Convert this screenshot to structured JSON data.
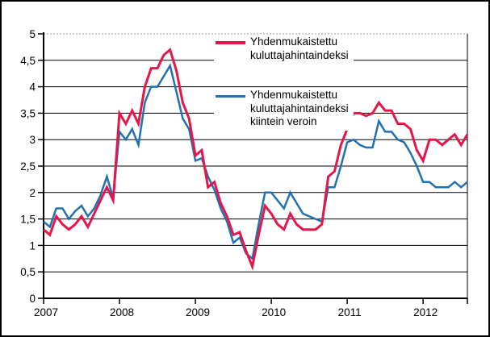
{
  "figure": {
    "background": "#ffffff",
    "frame_color": "#000000"
  },
  "legend": [
    {
      "lines": [
        "Yhdenmukaistettu",
        "kuluttajahintaindeksi"
      ],
      "color": "#e5164a"
    },
    {
      "lines": [
        "Yhdenmukaistettu",
        "kuluttajahintaindeksi",
        "kiintein veroin"
      ],
      "color": "#2272b2"
    }
  ],
  "chart_data": {
    "type": "line",
    "title": "",
    "xlabel": "",
    "ylabel": "",
    "x_frequency": "monthly",
    "x_start": "2007-01",
    "x_end": "2012-08",
    "x_tick_labels": [
      "2007",
      "2008",
      "2009",
      "2010",
      "2011",
      "2012"
    ],
    "x_tick_month_indices": [
      0,
      12,
      24,
      36,
      48,
      60
    ],
    "ylim": [
      0,
      5
    ],
    "y_ticks": [
      0,
      0.5,
      1,
      1.5,
      2,
      2.5,
      3,
      3.5,
      4,
      4.5,
      5
    ],
    "y_tick_labels": [
      "0",
      "0,5",
      "1",
      "1,5",
      "2",
      "2,5",
      "3",
      "3,5",
      "4",
      "4,5",
      "5"
    ],
    "grid": "horizontal",
    "top_gridline_style": "dotted-grey",
    "legend_position": "inside-top-center",
    "series": [
      {
        "name": "Yhdenmukaistettu kuluttajahintaindeksi",
        "color": "#e5164a",
        "line_width": 3,
        "values": [
          1.3,
          1.2,
          1.55,
          1.4,
          1.3,
          1.4,
          1.55,
          1.35,
          1.6,
          1.85,
          2.1,
          1.85,
          3.5,
          3.3,
          3.55,
          3.3,
          4.0,
          4.35,
          4.35,
          4.6,
          4.7,
          4.3,
          3.7,
          3.4,
          2.7,
          2.8,
          2.1,
          2.2,
          1.8,
          1.55,
          1.2,
          1.25,
          0.9,
          0.6,
          1.2,
          1.75,
          1.6,
          1.4,
          1.3,
          1.6,
          1.4,
          1.3,
          1.3,
          1.3,
          1.4,
          2.3,
          2.4,
          2.9,
          3.2,
          3.5,
          3.5,
          3.45,
          3.5,
          3.7,
          3.55,
          3.55,
          3.3,
          3.3,
          3.2,
          2.8,
          2.6,
          3.0,
          3.0,
          2.9,
          3.0,
          3.1,
          2.9,
          3.1
        ]
      },
      {
        "name": "Yhdenmukaistettu kuluttajahintaindeksi kiintein veroin",
        "color": "#2272b2",
        "line_width": 2.5,
        "values": [
          1.45,
          1.35,
          1.7,
          1.7,
          1.5,
          1.65,
          1.75,
          1.55,
          1.7,
          1.95,
          2.3,
          1.9,
          3.15,
          3.0,
          3.2,
          2.9,
          3.7,
          4.0,
          4.0,
          4.2,
          4.4,
          3.9,
          3.4,
          3.2,
          2.6,
          2.65,
          2.3,
          2.05,
          1.7,
          1.45,
          1.05,
          1.15,
          0.85,
          0.75,
          1.4,
          2.0,
          2.0,
          1.85,
          1.7,
          2.0,
          1.8,
          1.6,
          1.55,
          1.5,
          1.45,
          2.1,
          2.1,
          2.5,
          2.95,
          3.0,
          2.9,
          2.85,
          2.85,
          3.35,
          3.15,
          3.15,
          3.0,
          2.95,
          2.75,
          2.5,
          2.2,
          2.2,
          2.1,
          2.1,
          2.1,
          2.2,
          2.1,
          2.2
        ]
      }
    ]
  }
}
